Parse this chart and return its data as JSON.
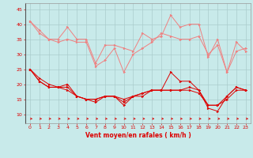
{
  "x": [
    0,
    1,
    2,
    3,
    4,
    5,
    6,
    7,
    8,
    9,
    10,
    11,
    12,
    13,
    14,
    15,
    16,
    17,
    18,
    19,
    20,
    21,
    22,
    23
  ],
  "series_light": [
    [
      41,
      38,
      35,
      35,
      39,
      35,
      35,
      27,
      33,
      33,
      32,
      31,
      37,
      35,
      36,
      43,
      39,
      40,
      40,
      29,
      35,
      24,
      34,
      31
    ],
    [
      41,
      37,
      35,
      34,
      35,
      34,
      34,
      26,
      28,
      32,
      24,
      30,
      32,
      34,
      37,
      36,
      35,
      35,
      36,
      30,
      33,
      24,
      31,
      32
    ]
  ],
  "series_dark": [
    [
      25,
      22,
      20,
      19,
      20,
      16,
      15,
      14,
      16,
      16,
      13,
      16,
      16,
      18,
      18,
      24,
      21,
      21,
      18,
      12,
      11,
      16,
      19,
      18
    ],
    [
      25,
      21,
      19,
      19,
      19,
      16,
      15,
      15,
      16,
      16,
      14,
      16,
      17,
      18,
      18,
      18,
      18,
      19,
      18,
      13,
      13,
      16,
      19,
      18
    ],
    [
      25,
      21,
      19,
      19,
      18,
      16,
      15,
      15,
      16,
      16,
      15,
      16,
      17,
      18,
      18,
      18,
      18,
      18,
      17,
      13,
      13,
      15,
      18,
      18
    ]
  ],
  "color_light": "#f08080",
  "color_dark": "#dd0000",
  "bgcolor": "#c8eaea",
  "grid_color": "#aacccc",
  "xlabel": "Vent moyen/en rafales ( km/h )",
  "ylabel_ticks": [
    10,
    15,
    20,
    25,
    30,
    35,
    40,
    45
  ],
  "ylim": [
    7,
    47
  ],
  "xlim": [
    -0.5,
    23.5
  ]
}
